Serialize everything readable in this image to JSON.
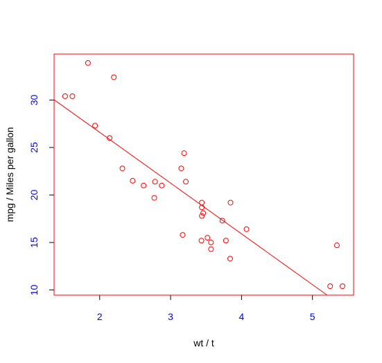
{
  "chart_data": {
    "type": "scatter",
    "x_label": "wt / t",
    "y_label": "mpg / Miles per gallon",
    "x": [
      2.62,
      2.875,
      2.32,
      3.215,
      3.44,
      3.46,
      3.57,
      3.19,
      3.15,
      3.44,
      3.44,
      4.07,
      3.73,
      3.78,
      5.25,
      5.424,
      5.345,
      2.2,
      1.615,
      1.835,
      2.465,
      3.52,
      3.435,
      3.84,
      3.845,
      1.935,
      2.14,
      1.513,
      3.17,
      2.77,
      3.57,
      2.78
    ],
    "y": [
      21.0,
      21.0,
      22.8,
      21.4,
      18.7,
      18.1,
      14.3,
      24.4,
      22.8,
      19.2,
      17.8,
      16.4,
      17.3,
      15.2,
      10.4,
      10.4,
      14.7,
      32.4,
      30.4,
      33.9,
      21.5,
      15.5,
      15.2,
      13.3,
      19.2,
      27.3,
      26.0,
      30.4,
      15.8,
      19.7,
      15.0,
      21.4
    ],
    "fit": {
      "intercept": 37.285,
      "slope": -5.344
    },
    "color": "#ff0000",
    "tick_color": "#0000ff",
    "xlim": [
      1.357,
      5.58
    ],
    "ylim": [
      9.46,
      34.84
    ],
    "xticks": [
      2,
      3,
      4,
      5
    ],
    "yticks": [
      10,
      15,
      20,
      25,
      30
    ]
  }
}
